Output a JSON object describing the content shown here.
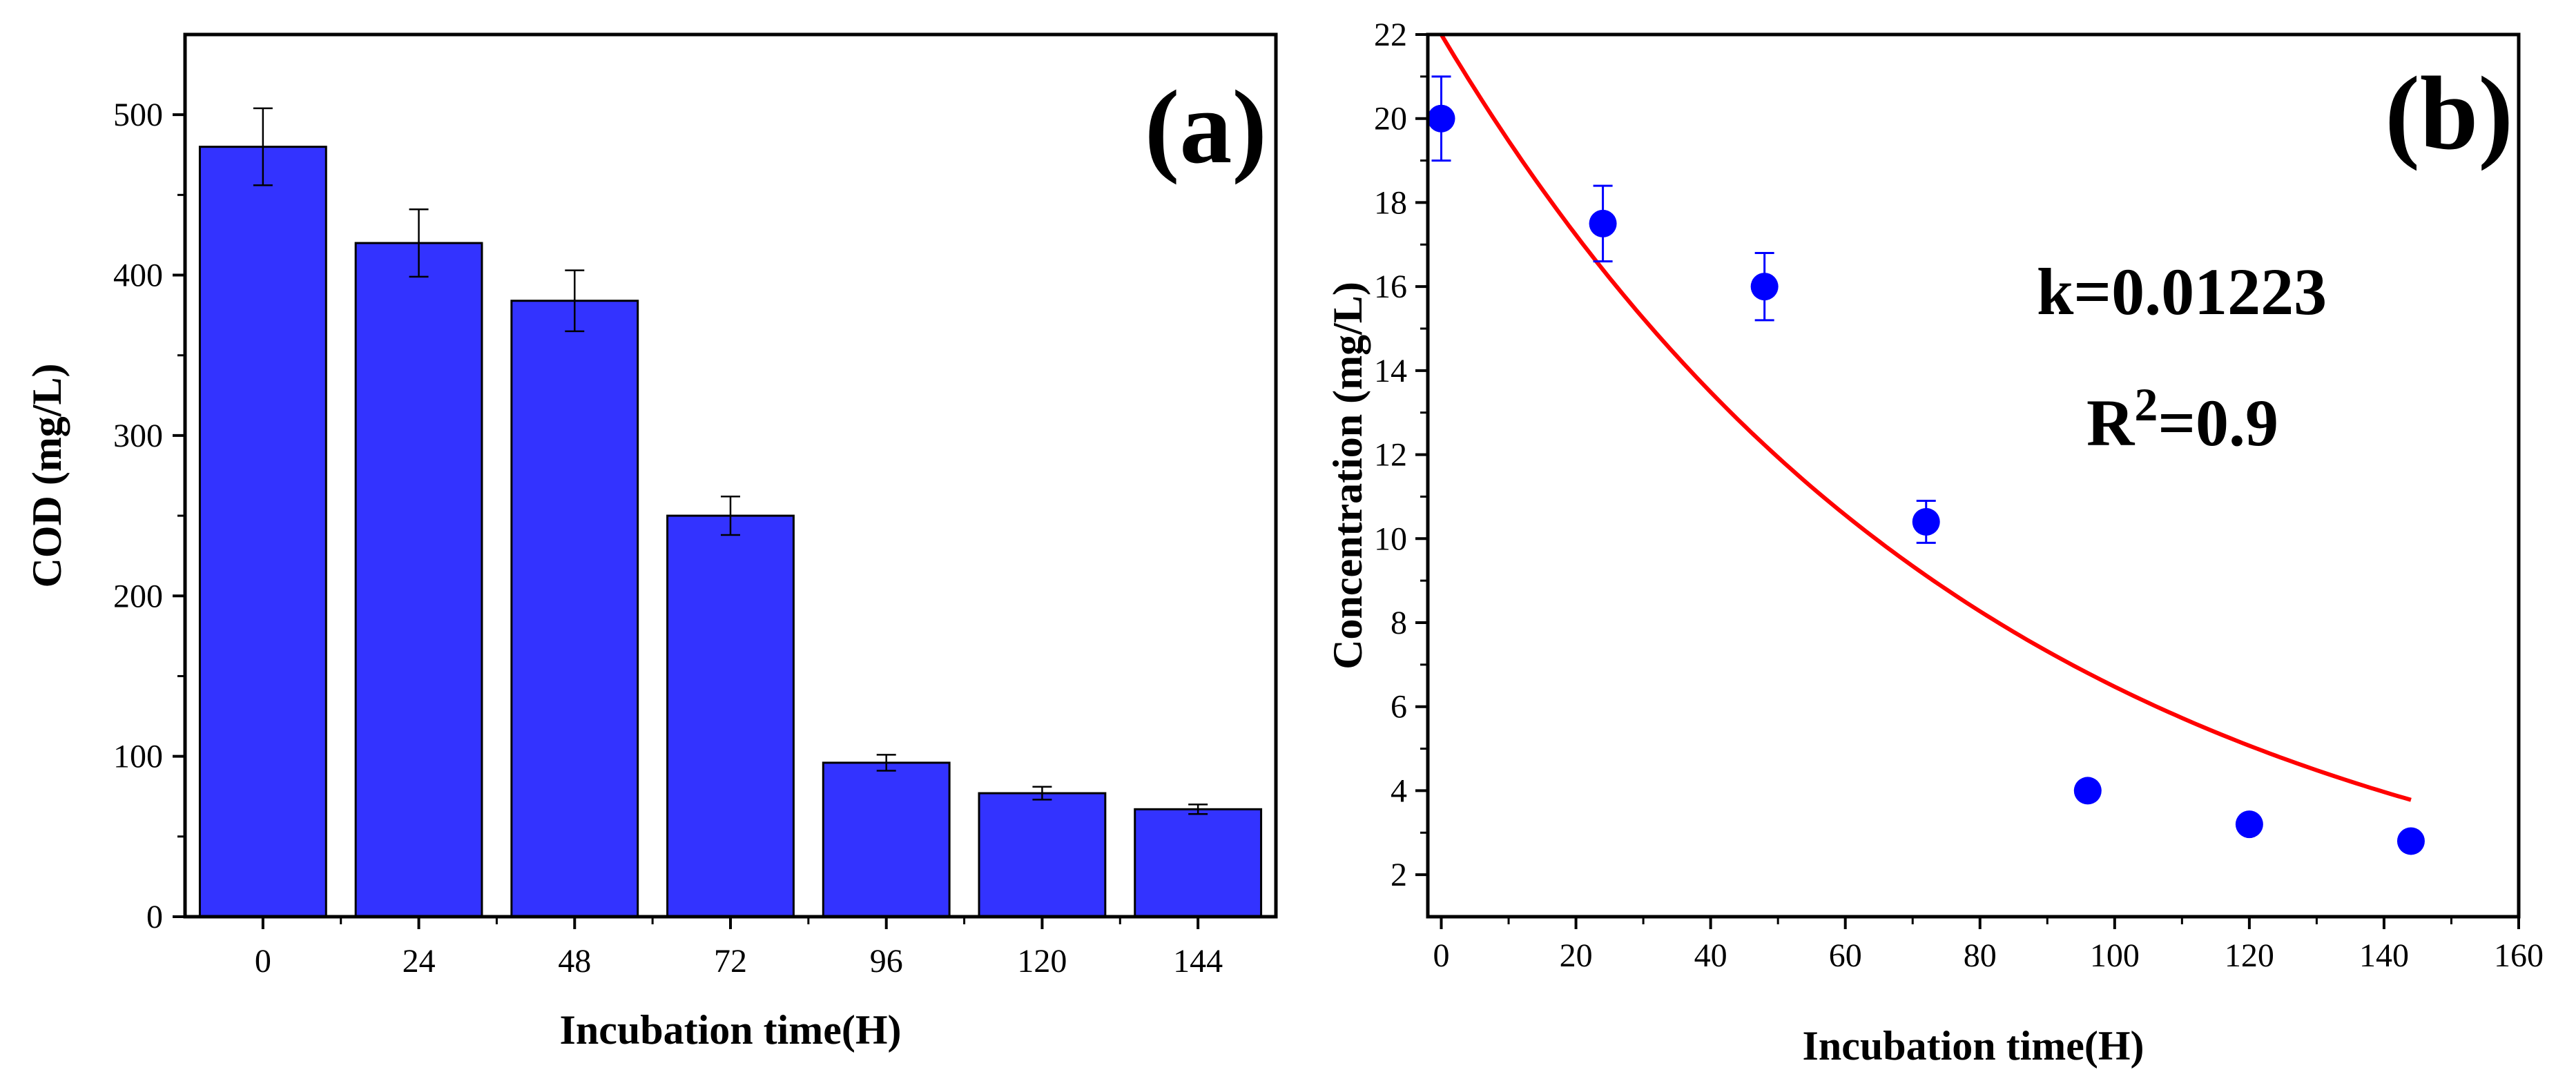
{
  "chart_data": [
    {
      "type": "bar",
      "panel_label": "(a)",
      "categories": [
        "0",
        "24",
        "48",
        "72",
        "96",
        "120",
        "144"
      ],
      "values": [
        480,
        420,
        384,
        250,
        96,
        77,
        67
      ],
      "errors": [
        24,
        21,
        19,
        12,
        5,
        4,
        3
      ],
      "xlabel": "Incubation time(H)",
      "ylabel": "COD (mg/L)",
      "ylim": [
        0,
        550
      ],
      "yticks": [
        0,
        100,
        200,
        300,
        400,
        500
      ],
      "grid": false,
      "color": "#3333ff"
    },
    {
      "type": "scatter",
      "panel_label": "(b)",
      "x": [
        0,
        24,
        48,
        72,
        96,
        120,
        144
      ],
      "y": [
        20.0,
        17.5,
        16.0,
        10.4,
        4.0,
        3.2,
        2.8
      ],
      "errors": [
        1.0,
        0.9,
        0.8,
        0.5,
        0,
        0,
        0
      ],
      "fit": {
        "type": "exponential",
        "c0": 22.0,
        "k": 0.01223,
        "x_range": [
          0,
          144
        ],
        "color": "#ff0000"
      },
      "annotations": {
        "k_text": "k=0.01223",
        "r2_prefix": "R",
        "r2_sup": "2",
        "r2_value": "=0.9"
      },
      "xlabel": "Incubation time(H)",
      "ylabel": "Concentration (mg/L)",
      "xlim": [
        -2,
        160
      ],
      "ylim": [
        1,
        22
      ],
      "xticks": [
        0,
        20,
        40,
        60,
        80,
        100,
        120,
        140,
        160
      ],
      "yticks": [
        2,
        4,
        6,
        8,
        10,
        12,
        14,
        16,
        18,
        20,
        22
      ],
      "grid": false,
      "color": "#0000ff"
    }
  ]
}
